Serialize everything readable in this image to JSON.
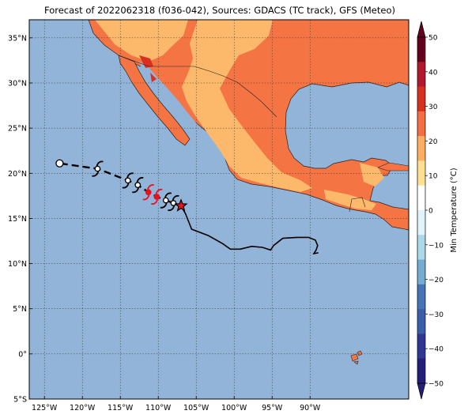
{
  "title": "Forecast of 2022062318 (f036-042), Sources: GDACS (TC track), GFS (Meteo)",
  "map": {
    "lon_range": [
      -127,
      -77
    ],
    "lat_range": [
      -5,
      37
    ],
    "x_ticks": [
      {
        "lon": -125,
        "label": "125°W"
      },
      {
        "lon": -120,
        "label": "120°W"
      },
      {
        "lon": -115,
        "label": "115°W"
      },
      {
        "lon": -110,
        "label": "110°W"
      },
      {
        "lon": -105,
        "label": "105°W"
      },
      {
        "lon": -100,
        "label": "100°W"
      },
      {
        "lon": -95,
        "label": "95°W"
      },
      {
        "lon": -90,
        "label": "90°W"
      }
    ],
    "y_ticks": [
      {
        "lat": 35,
        "label": "35°N"
      },
      {
        "lat": 30,
        "label": "30°N"
      },
      {
        "lat": 25,
        "label": "25°N"
      },
      {
        "lat": 20,
        "label": "20°N"
      },
      {
        "lat": 15,
        "label": "15°N"
      },
      {
        "lat": 10,
        "label": "10°N"
      },
      {
        "lat": 5,
        "label": "5°N"
      },
      {
        "lat": 0,
        "label": "0°"
      },
      {
        "lat": -5,
        "label": "5°S"
      }
    ],
    "grid": true,
    "colors": {
      "ocean": "#92b4d8",
      "land_warm": "#fdb96b",
      "land_hot": "#f47443",
      "land_hotter": "#d7301f",
      "track": "#000000",
      "hurricane_red": "#e8131f"
    }
  },
  "track": {
    "past": [
      [
        -107.0,
        16.4
      ],
      [
        -106.4,
        15.5
      ],
      [
        -105.6,
        13.8
      ],
      [
        -103.4,
        13.1
      ],
      [
        -101.5,
        12.2
      ],
      [
        -100.5,
        11.6
      ],
      [
        -99.2,
        11.6
      ],
      [
        -97.7,
        11.9
      ],
      [
        -96.3,
        11.8
      ],
      [
        -95.2,
        11.5
      ],
      [
        -94.8,
        12.0
      ],
      [
        -93.6,
        12.8
      ],
      [
        -91.7,
        12.9
      ],
      [
        -90.2,
        12.9
      ],
      [
        -89.3,
        12.6
      ],
      [
        -89.0,
        12.0
      ],
      [
        -89.2,
        11.5
      ],
      [
        -89.5,
        11.1
      ],
      [
        -88.9,
        11.2
      ]
    ],
    "forecast": [
      [
        -107.0,
        16.4
      ],
      [
        -108.0,
        16.7
      ],
      [
        -109.0,
        17.0
      ],
      [
        -110.2,
        17.4
      ],
      [
        -111.3,
        17.9
      ],
      [
        -112.7,
        18.7
      ],
      [
        -114.0,
        19.2
      ],
      [
        -118.0,
        20.5
      ],
      [
        -123.0,
        21.1
      ]
    ],
    "current_position": [
      -107.0,
      16.4
    ],
    "markers": [
      {
        "lon": -123.0,
        "lat": 21.1,
        "type": "circle"
      },
      {
        "lon": -118.0,
        "lat": 20.5,
        "type": "storm"
      },
      {
        "lon": -114.0,
        "lat": 19.2,
        "type": "storm"
      },
      {
        "lon": -112.7,
        "lat": 18.7,
        "type": "storm"
      },
      {
        "lon": -111.3,
        "lat": 17.9,
        "type": "hurricane"
      },
      {
        "lon": -110.2,
        "lat": 17.4,
        "type": "hurricane"
      },
      {
        "lon": -109.0,
        "lat": 17.0,
        "type": "storm"
      },
      {
        "lon": -108.0,
        "lat": 16.7,
        "type": "storm"
      }
    ]
  },
  "colorbar": {
    "label": "Min Temperature (°C)",
    "ticks": [
      "50",
      "40",
      "30",
      "20",
      "10",
      "0",
      "−10",
      "−20",
      "−30",
      "−40",
      "−50"
    ],
    "colors": [
      "#67001f",
      "#b2182b",
      "#d6301f",
      "#f46d43",
      "#fdae61",
      "#fee090",
      "#ffffff",
      "#e0f3f8",
      "#abd9e9",
      "#74add1",
      "#4575b4",
      "#3a5fa8",
      "#313695",
      "#241e7a"
    ]
  }
}
